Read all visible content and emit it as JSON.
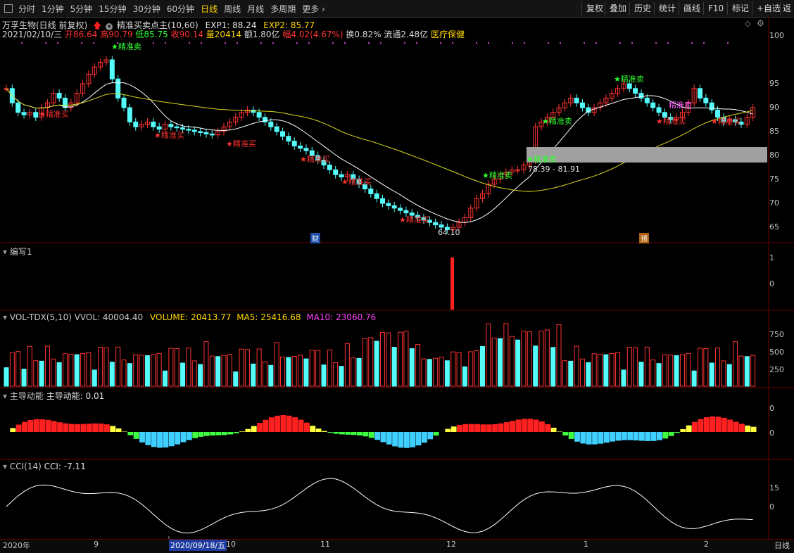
{
  "toolbar": {
    "periods": [
      "分时",
      "1分钟",
      "5分钟",
      "15分钟",
      "30分钟",
      "60分钟",
      "日线",
      "周线",
      "月线",
      "多周期",
      "更多"
    ],
    "active_index": 6,
    "more_arrow": "›",
    "right_buttons": [
      "复权",
      "叠加",
      "历史",
      "统计",
      "画线",
      "F10",
      "标记",
      "+自选",
      "返"
    ]
  },
  "header": {
    "stock_name": "万孚生物(日线 前复权)",
    "indicator": "精准买卖点主(10,60)",
    "exp1_label": "EXP1: 88.24",
    "exp2_label": "EXP2: 85.77"
  },
  "quote": {
    "date": "2021/02/10/三",
    "open": "开86.64",
    "high": "高90.79",
    "low": "低85.75",
    "close": "收90.14",
    "volume": "量20414",
    "amount": "额1.80亿",
    "change": "幅4.02(4.67%)",
    "turnover": "换0.82%",
    "float": "流通2.48亿",
    "sector": "医疗保健"
  },
  "main_chart": {
    "y_ticks": [
      "100",
      "95",
      "90",
      "85",
      "80",
      "75",
      "70",
      "65"
    ],
    "zone_label": "78.39 - 81.91",
    "low_label": "64.10",
    "buy_label": "★精准买",
    "sell_label": "★精准卖",
    "sell_label_2": "精准卖",
    "markers": [
      "财",
      "预"
    ],
    "colors": {
      "up": "#ff3232",
      "down": "#54fcfc",
      "ma_short": "#ffffff",
      "ma_long": "#d8d820",
      "buy": "#ff3232",
      "sell": "#32ff32",
      "zone": "#a0a0a0"
    }
  },
  "panel_write": {
    "title": "编写1",
    "y_ticks": [
      "1",
      "0"
    ]
  },
  "panel_vol": {
    "title": "VOL-TDX(5,10)",
    "vvol": "VVOL: 40004.40",
    "volume": "VOLUME: 20413.77",
    "ma5": "MA5: 25416.68",
    "ma10": "MA10: 23060.76",
    "y_ticks": [
      "750",
      "500",
      "250"
    ],
    "colors": {
      "volume": "#ffd700",
      "ma5": "#ffd700",
      "ma10": "#ff40ff"
    }
  },
  "panel_power": {
    "title": "主导动能",
    "value": "主导动能: 0.01",
    "y_ticks": [
      "0",
      "0"
    ]
  },
  "panel_cci": {
    "title": "CCI(14)",
    "value": "CCI: -7.11",
    "y_ticks": [
      "15",
      "0"
    ]
  },
  "x_axis": {
    "labels": [
      "2020年",
      "9",
      "10",
      "11",
      "12",
      "1",
      "2"
    ],
    "cursor_label": "2020/09/18/五",
    "right_label": "日线"
  }
}
